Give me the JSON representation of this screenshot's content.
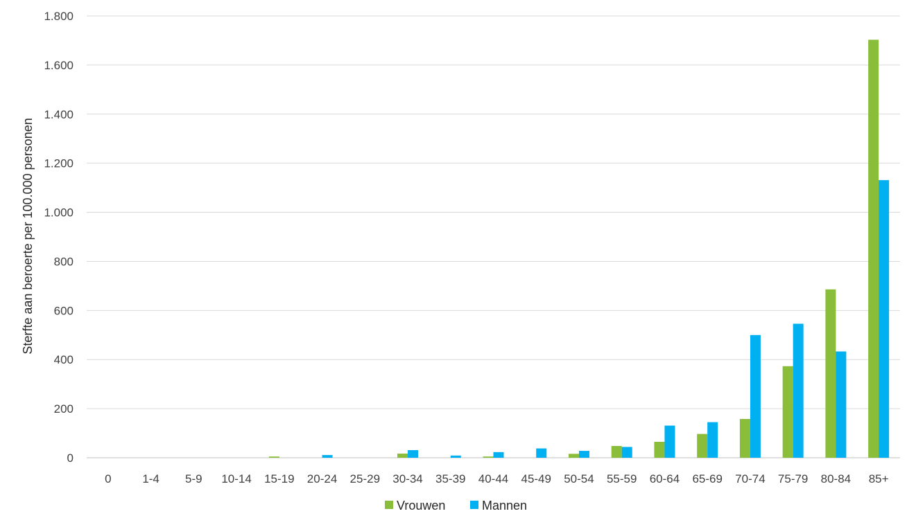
{
  "chart_data": {
    "type": "bar",
    "title": "",
    "xlabel": "",
    "ylabel": "Sterfte aan beroerte per 100.000 personen",
    "ylim": [
      0,
      1800
    ],
    "yticks": [
      0,
      200,
      400,
      600,
      800,
      1000,
      1200,
      1400,
      1600,
      1800
    ],
    "ytick_labels": [
      "0",
      "200",
      "400",
      "600",
      "800",
      "1.000",
      "1.200",
      "1.400",
      "1.600",
      "1.800"
    ],
    "grid": true,
    "legend_position": "bottom",
    "categories": [
      "0",
      "1-4",
      "5-9",
      "10-14",
      "15-19",
      "20-24",
      "25-29",
      "30-34",
      "35-39",
      "40-44",
      "45-49",
      "50-54",
      "55-59",
      "60-64",
      "65-69",
      "70-74",
      "75-79",
      "80-84",
      "85+"
    ],
    "series": [
      {
        "name": "Vrouwen",
        "color": "#8abd3a",
        "values": [
          0,
          0,
          0,
          0,
          5,
          0,
          0,
          17,
          0,
          5,
          0,
          16,
          48,
          65,
          97,
          158,
          373,
          686,
          1703
        ]
      },
      {
        "name": "Mannen",
        "color": "#00b0f0",
        "values": [
          0,
          0,
          0,
          0,
          0,
          11,
          0,
          31,
          9,
          23,
          38,
          28,
          44,
          131,
          145,
          500,
          546,
          433,
          1131
        ]
      }
    ]
  }
}
